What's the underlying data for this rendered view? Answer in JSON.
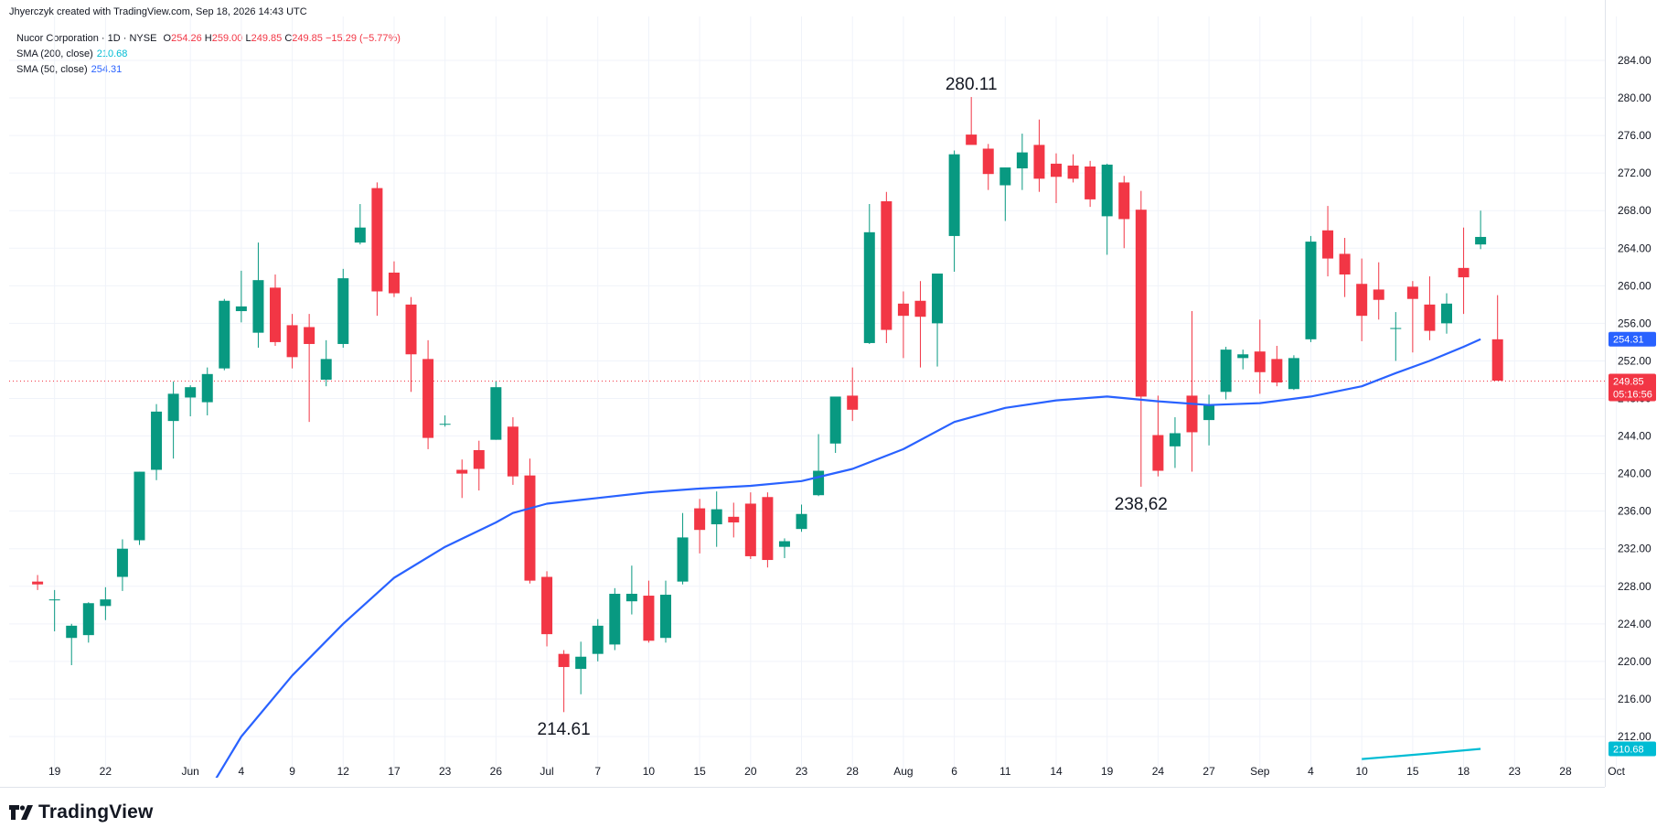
{
  "header": {
    "credit": "Jhyerczyk created with TradingView.com, Sep 18, 2026 14:43 UTC"
  },
  "legend": {
    "symbol": "Nucor Corporation · 1D · NYSE",
    "open_label": "O",
    "open": "254.26",
    "high_label": "H",
    "high": "259.00",
    "low_label": "L",
    "low": "249.85",
    "close_label": "C",
    "close": "249.85",
    "change": "−15.29 (−5.77%)",
    "sma200_label": "SMA (200, close)",
    "sma200_value": "210.68",
    "sma50_label": "SMA (50, close)",
    "sma50_value": "254.31"
  },
  "branding": {
    "logo_text": "TradingView"
  },
  "colors": {
    "up": "#089981",
    "down": "#f23645",
    "sma50": "#2962ff",
    "sma200": "#00bcd4",
    "grid": "#f0f3fa",
    "last_price_line": "#f23645"
  },
  "chart_data": {
    "type": "candlestick",
    "symbol": "Nucor Corporation",
    "interval": "1D",
    "exchange": "NYSE",
    "ylim": [
      208,
      286
    ],
    "y_ticks": [
      212,
      216,
      220,
      224,
      228,
      232,
      236,
      240,
      244,
      248,
      252,
      256,
      260,
      264,
      268,
      272,
      276,
      280,
      284
    ],
    "y_tick_labels": [
      "212.00",
      "216.00",
      "220.00",
      "224.00",
      "228.00",
      "232.00",
      "236.00",
      "240.00",
      "244.00",
      "248.00",
      "252.00",
      "256.00",
      "260.00",
      "264.00",
      "268.00",
      "272.00",
      "276.00",
      "280.00",
      "284.00"
    ],
    "x_ticks": [
      {
        "i": 1,
        "label": "19"
      },
      {
        "i": 4,
        "label": "22"
      },
      {
        "i": 9,
        "label": "Jun"
      },
      {
        "i": 12,
        "label": "4"
      },
      {
        "i": 15,
        "label": "9"
      },
      {
        "i": 18,
        "label": "12"
      },
      {
        "i": 21,
        "label": "17"
      },
      {
        "i": 24,
        "label": "23"
      },
      {
        "i": 27,
        "label": "26"
      },
      {
        "i": 30,
        "label": "Jul"
      },
      {
        "i": 33,
        "label": "7"
      },
      {
        "i": 36,
        "label": "10"
      },
      {
        "i": 39,
        "label": "15"
      },
      {
        "i": 42,
        "label": "20"
      },
      {
        "i": 45,
        "label": "23"
      },
      {
        "i": 48,
        "label": "28"
      },
      {
        "i": 51,
        "label": "Aug"
      },
      {
        "i": 54,
        "label": "6"
      },
      {
        "i": 57,
        "label": "11"
      },
      {
        "i": 60,
        "label": "14"
      },
      {
        "i": 63,
        "label": "19"
      },
      {
        "i": 66,
        "label": "24"
      },
      {
        "i": 69,
        "label": "27"
      },
      {
        "i": 72,
        "label": "Sep"
      },
      {
        "i": 75,
        "label": "4"
      },
      {
        "i": 78,
        "label": "10"
      },
      {
        "i": 81,
        "label": "15"
      },
      {
        "i": 84,
        "label": "18"
      },
      {
        "i": 87,
        "label": "23"
      },
      {
        "i": 90,
        "label": "28"
      },
      {
        "i": 93,
        "label": "Oct"
      }
    ],
    "candles": [
      [
        228.5,
        229.2,
        227.6,
        228.2
      ],
      [
        226.5,
        227.6,
        223.2,
        226.6
      ],
      [
        222.5,
        224.0,
        219.6,
        223.8
      ],
      [
        222.8,
        226.3,
        222.0,
        226.2
      ],
      [
        225.9,
        227.9,
        224.4,
        226.6
      ],
      [
        229.0,
        233.0,
        227.5,
        232.0
      ],
      [
        232.9,
        240.2,
        232.4,
        240.2
      ],
      [
        240.4,
        247.4,
        239.3,
        246.6
      ],
      [
        245.6,
        249.8,
        241.6,
        248.5
      ],
      [
        248.1,
        249.4,
        246.1,
        249.2
      ],
      [
        247.6,
        251.3,
        246.2,
        250.6
      ],
      [
        251.2,
        258.6,
        251.0,
        258.4
      ],
      [
        257.3,
        261.6,
        256.1,
        257.8
      ],
      [
        255.0,
        264.6,
        253.4,
        260.6
      ],
      [
        259.8,
        261.2,
        253.6,
        254.0
      ],
      [
        255.8,
        257.0,
        251.2,
        252.4
      ],
      [
        255.6,
        257.0,
        245.5,
        253.8
      ],
      [
        250.0,
        254.2,
        249.3,
        252.2
      ],
      [
        253.8,
        261.8,
        253.4,
        260.8
      ],
      [
        264.6,
        268.7,
        264.4,
        266.2
      ],
      [
        270.4,
        271.0,
        256.8,
        259.4
      ],
      [
        261.4,
        262.6,
        258.8,
        259.2
      ],
      [
        258.0,
        258.8,
        248.7,
        252.7
      ],
      [
        252.2,
        254.2,
        242.6,
        243.8
      ],
      [
        245.2,
        246.2,
        245.0,
        245.3
      ],
      [
        240.4,
        241.5,
        237.4,
        240.0
      ],
      [
        242.5,
        243.5,
        238.2,
        240.5
      ],
      [
        243.6,
        249.8,
        243.6,
        249.2
      ],
      [
        245.0,
        246.0,
        238.8,
        239.7
      ],
      [
        239.8,
        241.6,
        228.3,
        228.6
      ],
      [
        229.0,
        229.6,
        221.6,
        222.9
      ],
      [
        220.8,
        221.2,
        214.6,
        219.4
      ],
      [
        219.2,
        222.1,
        216.5,
        220.5
      ],
      [
        220.8,
        224.5,
        220.0,
        223.8
      ],
      [
        221.8,
        227.8,
        221.2,
        227.2
      ],
      [
        226.4,
        230.2,
        225.0,
        227.2
      ],
      [
        227.0,
        228.6,
        222.0,
        222.2
      ],
      [
        222.5,
        228.6,
        222.0,
        227.1
      ],
      [
        228.5,
        235.8,
        228.2,
        233.2
      ],
      [
        236.3,
        237.3,
        231.5,
        234.0
      ],
      [
        234.6,
        238.1,
        232.2,
        236.2
      ],
      [
        235.4,
        236.9,
        233.2,
        234.8
      ],
      [
        236.8,
        238.0,
        230.9,
        231.2
      ],
      [
        237.5,
        238.0,
        230.0,
        230.8
      ],
      [
        232.2,
        233.1,
        231.0,
        232.8
      ],
      [
        234.1,
        236.7,
        233.8,
        235.7
      ],
      [
        237.7,
        244.2,
        237.6,
        240.3
      ],
      [
        243.2,
        248.0,
        242.2,
        248.2
      ],
      [
        248.3,
        251.3,
        245.6,
        246.8
      ],
      [
        253.9,
        268.7,
        253.8,
        265.7
      ],
      [
        269.0,
        270.0,
        253.9,
        255.3
      ],
      [
        258.1,
        259.4,
        252.3,
        256.8
      ],
      [
        258.4,
        260.5,
        251.3,
        256.7
      ],
      [
        256.0,
        261.3,
        251.4,
        261.3
      ],
      [
        265.3,
        274.4,
        261.5,
        274.0
      ],
      [
        276.1,
        280.1,
        275.1,
        275.0
      ],
      [
        274.6,
        275.1,
        270.2,
        271.9
      ],
      [
        270.7,
        272.4,
        266.9,
        272.6
      ],
      [
        272.5,
        276.2,
        270.2,
        274.2
      ],
      [
        275.0,
        277.7,
        270.0,
        271.4
      ],
      [
        273.0,
        274.1,
        268.8,
        271.6
      ],
      [
        272.8,
        274.0,
        271.0,
        271.4
      ],
      [
        272.7,
        273.3,
        268.4,
        269.2
      ],
      [
        267.4,
        273.0,
        263.3,
        272.9
      ],
      [
        271.0,
        271.7,
        264.0,
        267.1
      ],
      [
        268.1,
        270.1,
        238.6,
        248.2
      ],
      [
        244.1,
        248.3,
        239.7,
        240.3
      ],
      [
        242.9,
        246.0,
        240.6,
        244.3
      ],
      [
        248.3,
        257.3,
        240.2,
        244.4
      ],
      [
        245.7,
        248.4,
        243.0,
        247.3
      ],
      [
        248.7,
        253.5,
        247.9,
        253.2
      ],
      [
        252.3,
        253.2,
        251.1,
        252.7
      ],
      [
        253.0,
        256.4,
        248.5,
        250.8
      ],
      [
        252.2,
        253.6,
        249.3,
        249.7
      ],
      [
        249.0,
        252.6,
        248.9,
        252.3
      ],
      [
        254.3,
        265.3,
        254.0,
        264.7
      ],
      [
        265.9,
        268.5,
        261.0,
        262.9
      ],
      [
        263.4,
        265.1,
        258.8,
        261.2
      ],
      [
        260.2,
        262.9,
        254.1,
        256.8
      ],
      [
        259.6,
        262.5,
        256.4,
        258.5
      ],
      [
        255.4,
        257.2,
        252.0,
        255.5
      ],
      [
        259.9,
        260.5,
        252.9,
        258.6
      ],
      [
        258.0,
        261.0,
        254.2,
        255.2
      ],
      [
        256.0,
        259.2,
        254.9,
        258.1
      ],
      [
        261.9,
        266.2,
        257.0,
        260.9
      ],
      [
        264.4,
        268.0,
        263.9,
        265.2
      ],
      [
        254.3,
        259.0,
        249.9,
        249.9
      ]
    ],
    "sma50": [
      [
        10,
        206.0
      ],
      [
        12,
        212.0
      ],
      [
        15,
        218.5
      ],
      [
        18,
        224.0
      ],
      [
        21,
        228.9
      ],
      [
        24,
        232.2
      ],
      [
        27,
        234.8
      ],
      [
        28,
        235.8
      ],
      [
        30,
        236.8
      ],
      [
        33,
        237.4
      ],
      [
        36,
        238.0
      ],
      [
        39,
        238.4
      ],
      [
        42,
        238.7
      ],
      [
        45,
        239.2
      ],
      [
        48,
        240.5
      ],
      [
        51,
        242.6
      ],
      [
        54,
        245.5
      ],
      [
        57,
        247.0
      ],
      [
        60,
        247.8
      ],
      [
        63,
        248.2
      ],
      [
        66,
        247.7
      ],
      [
        69,
        247.3
      ],
      [
        72,
        247.5
      ],
      [
        75,
        248.2
      ],
      [
        78,
        249.3
      ],
      [
        80,
        250.7
      ],
      [
        82,
        252.0
      ],
      [
        84,
        253.5
      ],
      [
        85,
        254.31
      ]
    ],
    "sma200": [
      [
        78,
        209.6
      ],
      [
        80,
        209.9
      ],
      [
        82,
        210.2
      ],
      [
        85,
        210.68
      ]
    ],
    "annotations": [
      {
        "i": 55,
        "price": 280.11,
        "label": "280.11",
        "position": "above"
      },
      {
        "i": 65,
        "price": 238.62,
        "label": "238,62",
        "position": "below"
      },
      {
        "i": 31,
        "price": 214.61,
        "label": "214.61",
        "position": "below"
      }
    ],
    "price_tags": [
      {
        "price": 254.31,
        "label": "254.31",
        "color": "#2962ff"
      },
      {
        "price": 249.85,
        "label": "249.85",
        "sub": "05:16:56",
        "color": "#f23645"
      },
      {
        "price": 210.68,
        "label": "210.68",
        "color": "#00bcd4"
      }
    ],
    "last_price": 249.85
  }
}
